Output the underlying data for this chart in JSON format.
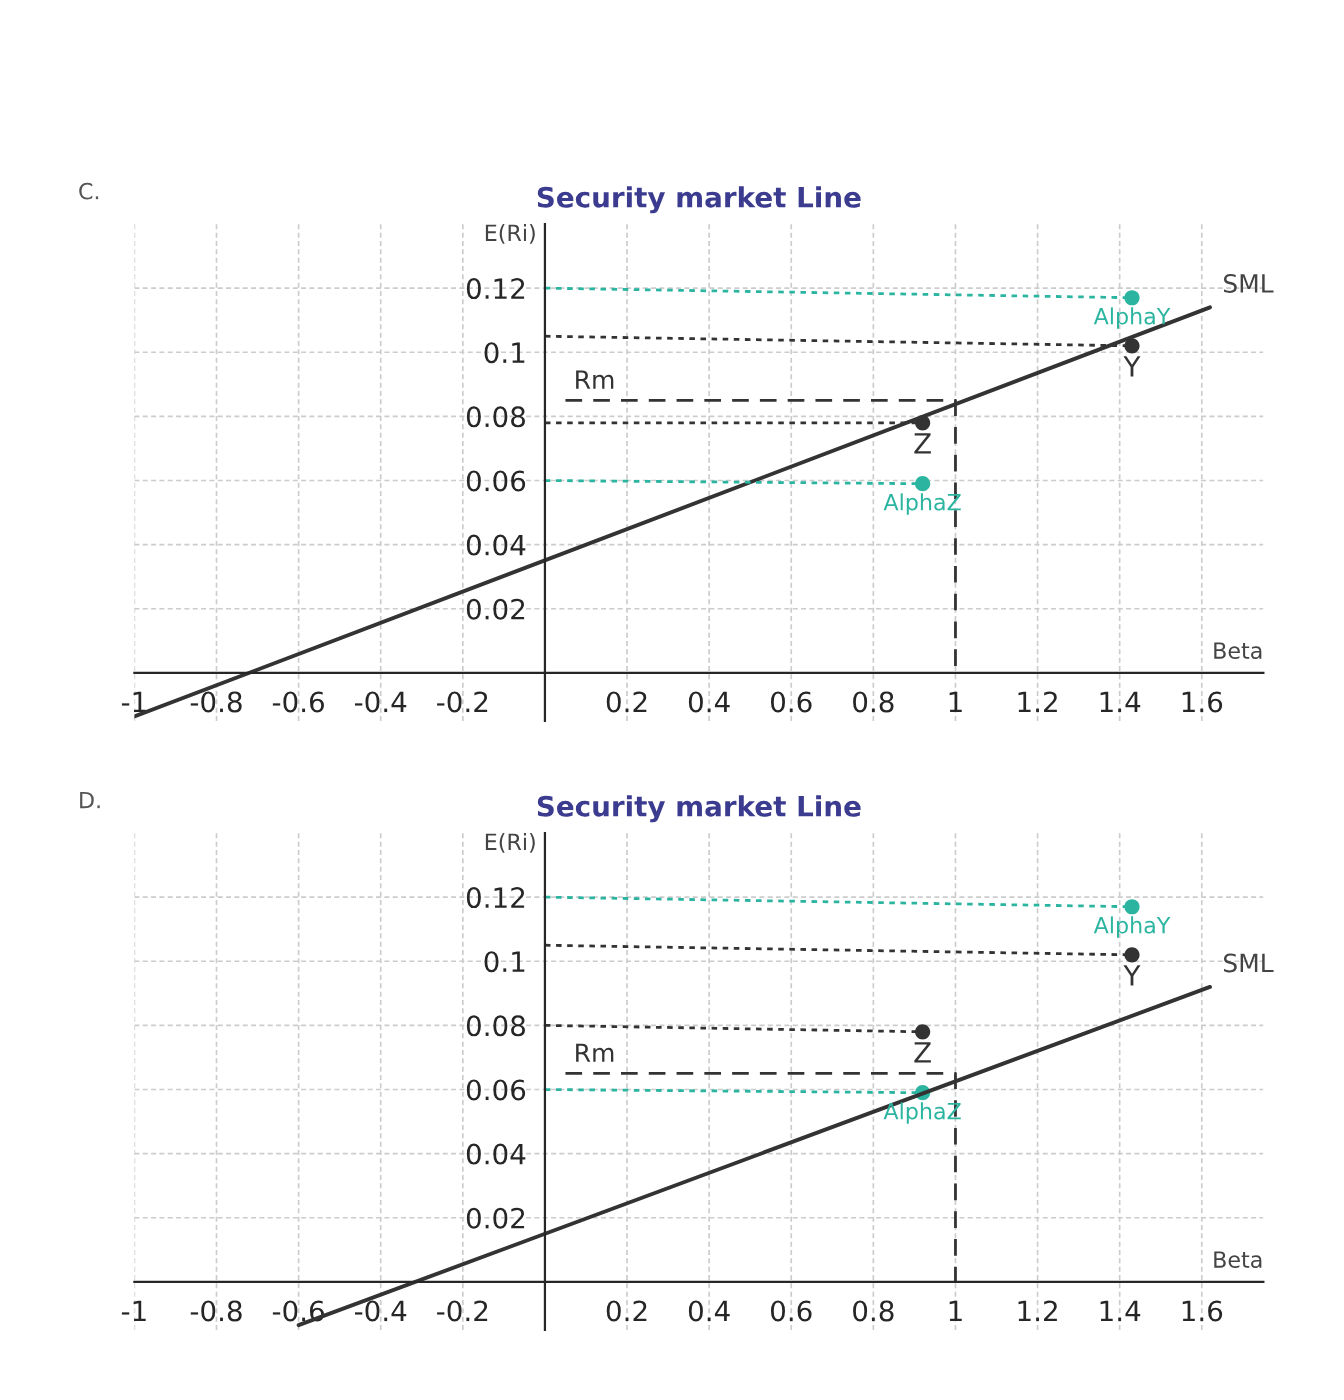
{
  "chart_data": [
    {
      "type": "line",
      "title": "Security market Line",
      "xlabel": "Beta",
      "ylabel": "E(Ri)",
      "annotations": [
        "C."
      ],
      "grid": true,
      "legend": false,
      "xlim": [
        -1,
        1.75
      ],
      "ylim": [
        -0.015,
        0.14
      ],
      "xticks": [
        -1,
        {
          "value": -0.8,
          "label": "-0.8"
        },
        {
          "value": -0.6,
          "label": "-0.6"
        },
        {
          "value": -0.4,
          "label": "-0.4"
        },
        {
          "value": -0.2,
          "label": "-0.2"
        },
        0.2,
        0.4,
        0.6,
        0.8,
        1,
        1.2,
        1.4,
        1.6
      ],
      "yticks": [
        0.02,
        0.04,
        0.06,
        0.08,
        0.1,
        0.12
      ],
      "series": [
        {
          "name": "SML",
          "type": "line",
          "line_style": "solid",
          "marker": "none",
          "color": "#333333",
          "x": [
            -1,
            1.62
          ],
          "values": [
            -0.0136,
            0.114
          ]
        },
        {
          "name": "Rm",
          "type": "line",
          "line_style": "dashed",
          "marker": "none",
          "color": "#333333",
          "x": [
            0.05,
            1,
            1
          ],
          "values": [
            0.085,
            0.085,
            0
          ]
        },
        {
          "type": "line",
          "line_style": "dotted",
          "marker": "none",
          "color": "#333333",
          "x": [
            0,
            0.92
          ],
          "values": [
            0.078,
            0.078
          ]
        },
        {
          "type": "line",
          "line_style": "dotted",
          "marker": "none",
          "color": "#333333",
          "x": [
            0,
            1.43
          ],
          "values": [
            0.105,
            0.102
          ]
        },
        {
          "type": "line",
          "line_style": "dotted",
          "marker": "none",
          "color": "#2bb5a0",
          "x": [
            0,
            0.92
          ],
          "values": [
            0.06,
            0.059
          ]
        },
        {
          "type": "line",
          "line_style": "dotted",
          "marker": "none",
          "color": "#2bb5a0",
          "x": [
            0,
            1.43
          ],
          "values": [
            0.12,
            0.117
          ]
        },
        {
          "name": "Z",
          "type": "scatter",
          "marker": "circle",
          "color": "#333333",
          "x": [
            0.92
          ],
          "values": [
            0.078
          ]
        },
        {
          "name": "Y",
          "type": "scatter",
          "marker": "circle",
          "color": "#333333",
          "x": [
            1.43
          ],
          "values": [
            0.102
          ]
        },
        {
          "name": "AlphaZ",
          "type": "scatter",
          "marker": "circle",
          "color": "#2bb5a0",
          "x": [
            0.92
          ],
          "values": [
            0.059
          ]
        },
        {
          "name": "AlphaY",
          "type": "scatter",
          "marker": "circle",
          "color": "#2bb5a0",
          "x": [
            1.43
          ],
          "values": [
            0.117
          ]
        }
      ]
    },
    {
      "type": "line",
      "title": "Security market Line",
      "xlabel": "Beta",
      "ylabel": "E(Ri)",
      "annotations": [
        "D."
      ],
      "grid": true,
      "legend": false,
      "xlim": [
        -1,
        1.75
      ],
      "ylim": [
        -0.015,
        0.14
      ],
      "xticks": [
        -1,
        {
          "value": -0.8,
          "label": "-0.8"
        },
        {
          "value": -0.6,
          "label": "-0.6"
        },
        {
          "value": -0.4,
          "label": "-0.4"
        },
        {
          "value": -0.2,
          "label": "-0.2"
        },
        0.2,
        0.4,
        0.6,
        0.8,
        1,
        1.2,
        1.4,
        1.6
      ],
      "yticks": [
        0.02,
        0.04,
        0.06,
        0.08,
        0.1,
        0.12
      ],
      "series": [
        {
          "name": "SML",
          "type": "line",
          "line_style": "solid",
          "marker": "none",
          "color": "#333333",
          "x": [
            -0.6,
            1.62
          ],
          "values": [
            -0.0135,
            0.092
          ]
        },
        {
          "name": "Rm",
          "type": "line",
          "line_style": "dashed",
          "marker": "none",
          "color": "#333333",
          "x": [
            0.05,
            1,
            1
          ],
          "values": [
            0.065,
            0.065,
            0
          ]
        },
        {
          "type": "line",
          "line_style": "dotted",
          "marker": "none",
          "color": "#333333",
          "x": [
            0,
            0.92
          ],
          "values": [
            0.08,
            0.078
          ]
        },
        {
          "type": "line",
          "line_style": "dotted",
          "marker": "none",
          "color": "#333333",
          "x": [
            0,
            1.43
          ],
          "values": [
            0.105,
            0.102
          ]
        },
        {
          "type": "line",
          "line_style": "dotted",
          "marker": "none",
          "color": "#2bb5a0",
          "x": [
            0,
            0.92
          ],
          "values": [
            0.06,
            0.059
          ]
        },
        {
          "type": "line",
          "line_style": "dotted",
          "marker": "none",
          "color": "#2bb5a0",
          "x": [
            0,
            1.43
          ],
          "values": [
            0.12,
            0.117
          ]
        },
        {
          "name": "Z",
          "type": "scatter",
          "marker": "circle",
          "color": "#333333",
          "x": [
            0.92
          ],
          "values": [
            0.078
          ]
        },
        {
          "name": "Y",
          "type": "scatter",
          "marker": "circle",
          "color": "#333333",
          "x": [
            1.43
          ],
          "values": [
            0.102
          ]
        },
        {
          "name": "AlphaZ",
          "type": "scatter",
          "marker": "circle",
          "color": "#2bb5a0",
          "x": [
            0.92
          ],
          "values": [
            0.059
          ]
        },
        {
          "name": "AlphaY",
          "type": "scatter",
          "marker": "circle",
          "color": "#2bb5a0",
          "x": [
            1.43
          ],
          "values": [
            0.117
          ]
        }
      ]
    }
  ]
}
